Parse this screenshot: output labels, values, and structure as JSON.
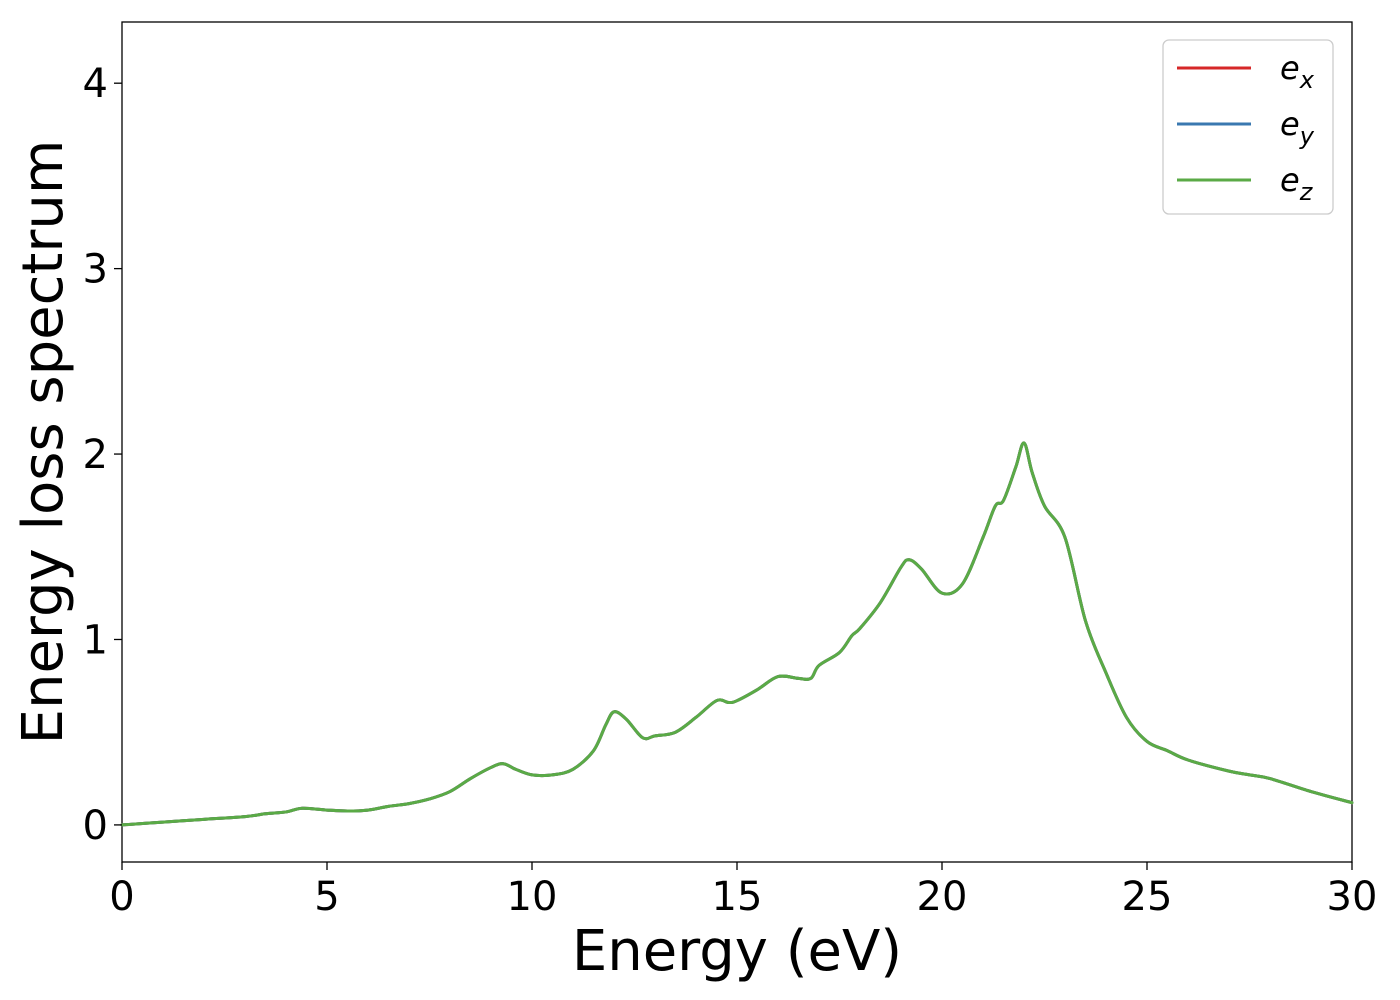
{
  "chart_data": {
    "type": "line",
    "title": "",
    "xlabel": "Energy (eV)",
    "ylabel": "Energy loss spectrum",
    "xlim": [
      0,
      30
    ],
    "ylim": [
      -0.2,
      4.33
    ],
    "xticks": [
      0,
      5,
      10,
      15,
      20,
      25,
      30
    ],
    "xtick_labels": [
      "0",
      "5",
      "10",
      "15",
      "20",
      "25",
      "30"
    ],
    "yticks": [
      0,
      1,
      2,
      3,
      4
    ],
    "ytick_labels": [
      "0",
      "1",
      "2",
      "3",
      "4"
    ],
    "grid": false,
    "legend": {
      "placement": "top-right"
    },
    "series": [
      {
        "name": "e_x",
        "legend_base": "e",
        "legend_sub": "x",
        "color": "#d62728"
      },
      {
        "name": "e_y",
        "legend_base": "e",
        "legend_sub": "y",
        "color": "#3a78b0"
      },
      {
        "name": "e_z",
        "legend_base": "e",
        "legend_sub": "z",
        "color": "#5aaa46"
      }
    ],
    "x": [
      0,
      1,
      2,
      3,
      3.5,
      4,
      4.4,
      5,
      5.5,
      6,
      6.5,
      7,
      7.5,
      8,
      8.5,
      9,
      9.3,
      9.6,
      10,
      10.5,
      11,
      11.5,
      11.8,
      12,
      12.3,
      12.7,
      13,
      13.5,
      14,
      14.5,
      14.8,
      15,
      15.5,
      16,
      16.5,
      16.8,
      17,
      17.5,
      17.8,
      18,
      18.5,
      19,
      19.2,
      19.5,
      20,
      20.5,
      21,
      21.3,
      21.5,
      21.8,
      22,
      22.2,
      22.5,
      23,
      23.5,
      24,
      24.5,
      25,
      25.5,
      26,
      27,
      27.5,
      28,
      29,
      30
    ],
    "y": [
      0.0,
      0.015,
      0.03,
      0.045,
      0.06,
      0.07,
      0.09,
      0.08,
      0.075,
      0.08,
      0.1,
      0.115,
      0.14,
      0.18,
      0.25,
      0.31,
      0.33,
      0.3,
      0.27,
      0.27,
      0.3,
      0.4,
      0.54,
      0.61,
      0.57,
      0.47,
      0.48,
      0.5,
      0.58,
      0.67,
      0.66,
      0.67,
      0.73,
      0.8,
      0.79,
      0.79,
      0.86,
      0.93,
      1.02,
      1.06,
      1.2,
      1.39,
      1.43,
      1.38,
      1.25,
      1.3,
      1.55,
      1.72,
      1.75,
      1.93,
      2.06,
      1.9,
      1.72,
      1.55,
      1.1,
      0.82,
      0.58,
      0.45,
      0.4,
      0.35,
      0.29,
      0.27,
      0.25,
      0.18,
      0.12
    ]
  }
}
